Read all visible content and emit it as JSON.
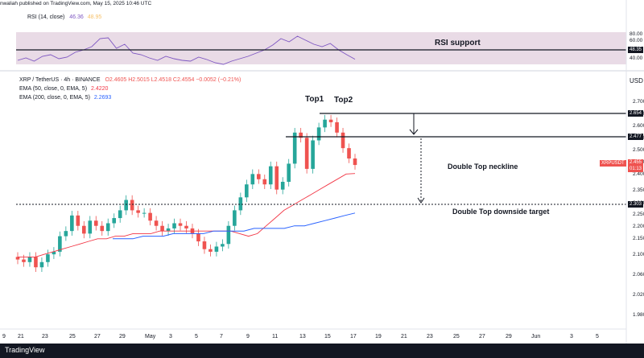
{
  "header": {
    "published": "nwaliah published on TradingView.com, May 15, 2025 10:46 UTC",
    "rsi_label": "RSI (14, close)",
    "rsi_value": "46.36",
    "rsi_value2": "48.95",
    "symbol_line": "XRP / TetherUS · 4h · BINANCE",
    "ohlc": "O2.4605 H2.5015 L2.4518 C2.4554 −0.0052 (−0.21%)",
    "ema50_label": "EMA (50, close, 0, EMA, 5)",
    "ema50_value": "2.4220",
    "ema200_label": "EMA (200, close, 0, EMA, 5)",
    "ema200_value": "2.2693",
    "currency": "USD"
  },
  "annotations": {
    "rsi_support": "RSI support",
    "top1": "Top1",
    "top2": "Top2",
    "neckline": "Double Top neckline",
    "target": "Double Top downside target"
  },
  "price_tags": {
    "top": "2.654",
    "neck": "2.477",
    "last": "2.455",
    "timer": "01:13",
    "target": "2.303",
    "symbol": "XRPUSDT",
    "rsi": "48.35"
  },
  "footer": {
    "brand": "TradingView"
  },
  "colors": {
    "up": "#26a69a",
    "down": "#ef5350",
    "ema50": "#f23645",
    "ema200": "#2962ff",
    "rsi": "#7e57c2"
  },
  "chart_data": {
    "type": "candlestick",
    "title": "XRP / TetherUS · 4h · BINANCE",
    "y_axis": {
      "ticks": [
        "2.700",
        "2.650",
        "2.600",
        "2.550",
        "2.500",
        "2.450",
        "2.400",
        "2.350",
        "2.300",
        "2.250",
        "2.200",
        "2.150",
        "2.100",
        "2.060",
        "2.020",
        "1.980",
        "1.940",
        "1.900"
      ],
      "ylim": [
        1.88,
        2.72
      ]
    },
    "x_axis": {
      "ticks": [
        "9",
        "21",
        "23",
        "25",
        "27",
        "29",
        "May",
        "3",
        "5",
        "7",
        "9",
        "11",
        "13",
        "15",
        "17",
        "19",
        "21",
        "23",
        "25",
        "27",
        "29",
        "Jun",
        "3",
        "5"
      ]
    },
    "rsi_axis": {
      "ticks": [
        "80.00",
        "60.00",
        "40.00"
      ],
      "ylim": [
        20,
        85
      ]
    },
    "close": [
      2.09,
      2.08,
      2.1,
      2.06,
      2.08,
      2.11,
      2.12,
      2.18,
      2.2,
      2.26,
      2.22,
      2.19,
      2.24,
      2.22,
      2.2,
      2.23,
      2.25,
      2.28,
      2.32,
      2.28,
      2.27,
      2.27,
      2.24,
      2.22,
      2.2,
      2.21,
      2.23,
      2.22,
      2.21,
      2.19,
      2.16,
      2.13,
      2.12,
      2.14,
      2.15,
      2.22,
      2.28,
      2.33,
      2.38,
      2.42,
      2.4,
      2.38,
      2.45,
      2.36,
      2.39,
      2.46,
      2.58,
      2.56,
      2.44,
      2.55,
      2.6,
      2.63,
      2.62,
      2.58,
      2.52,
      2.48,
      2.455
    ],
    "ema50": [
      2.1,
      2.1,
      2.1,
      2.11,
      2.12,
      2.13,
      2.14,
      2.15,
      2.16,
      2.17,
      2.17,
      2.18,
      2.18,
      2.19,
      2.19,
      2.19,
      2.2,
      2.2,
      2.2,
      2.2,
      2.2,
      2.2,
      2.2,
      2.2,
      2.2,
      2.19,
      2.18,
      2.19,
      2.22,
      2.25,
      2.28,
      2.3,
      2.32,
      2.34,
      2.36,
      2.38,
      2.4,
      2.42,
      2.422
    ],
    "ema200": [
      2.17,
      2.17,
      2.17,
      2.18,
      2.18,
      2.18,
      2.19,
      2.19,
      2.19,
      2.19,
      2.2,
      2.2,
      2.2,
      2.2,
      2.21,
      2.21,
      2.21,
      2.21,
      2.22,
      2.22,
      2.23,
      2.24,
      2.25,
      2.26,
      2.2693
    ],
    "rsi": [
      45,
      48,
      44,
      50,
      52,
      47,
      49,
      55,
      58,
      62,
      72,
      73,
      60,
      65,
      54,
      52,
      48,
      45,
      50,
      47,
      45,
      44,
      49,
      46,
      42,
      40,
      44,
      47,
      50,
      54,
      58,
      64,
      72,
      68,
      75,
      70,
      65,
      62,
      66,
      58,
      52,
      46.36
    ],
    "levels": {
      "neckline": 2.477,
      "target": 2.303,
      "top": 2.654,
      "rsi_support": 48.35
    }
  }
}
